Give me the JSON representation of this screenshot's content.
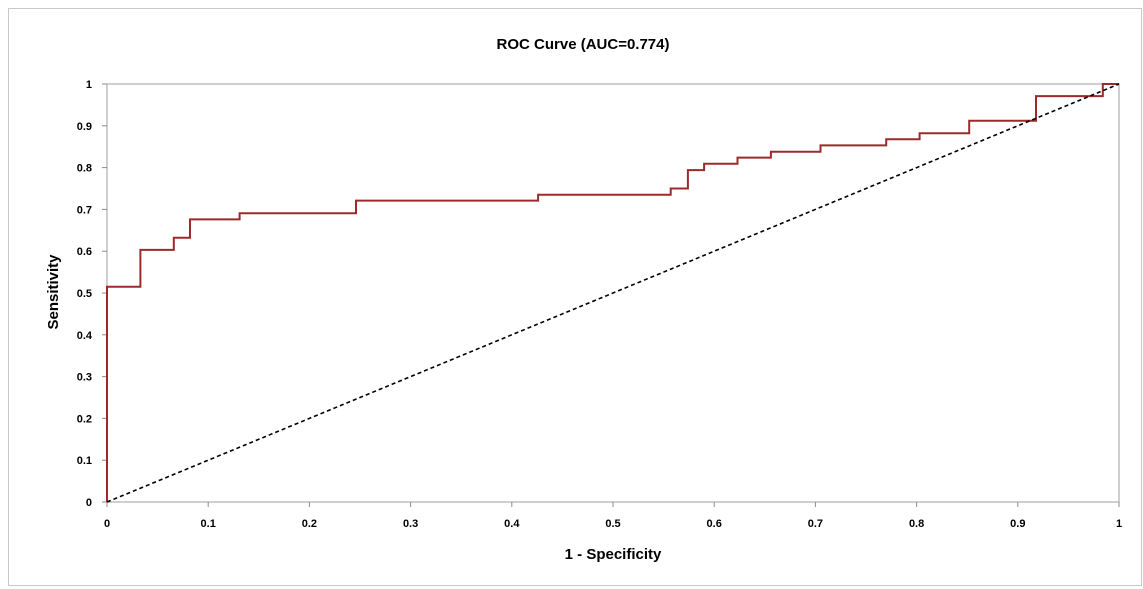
{
  "chart_data": {
    "type": "line",
    "title": "ROC Curve (AUC=0.774)",
    "xlabel": "1 - Specificity",
    "ylabel": "Sensitivity",
    "xlim": [
      0,
      1
    ],
    "ylim": [
      0,
      1
    ],
    "x_ticks": [
      "0",
      "0.1",
      "0.2",
      "0.3",
      "0.4",
      "0.5",
      "0.6",
      "0.7",
      "0.8",
      "0.9",
      "1"
    ],
    "y_ticks": [
      "0",
      "0.1",
      "0.2",
      "0.3",
      "0.4",
      "0.5",
      "0.6",
      "0.7",
      "0.8",
      "0.9",
      "1"
    ],
    "grid": false,
    "legend": "none",
    "series": [
      {
        "style": "step",
        "color": "#9b2b2b",
        "points": [
          [
            0,
            0
          ],
          [
            0,
            0.515
          ],
          [
            0.033,
            0.515
          ],
          [
            0.033,
            0.603
          ],
          [
            0.066,
            0.603
          ],
          [
            0.066,
            0.632
          ],
          [
            0.082,
            0.632
          ],
          [
            0.082,
            0.676
          ],
          [
            0.131,
            0.676
          ],
          [
            0.131,
            0.691
          ],
          [
            0.246,
            0.691
          ],
          [
            0.246,
            0.721
          ],
          [
            0.426,
            0.721
          ],
          [
            0.426,
            0.735
          ],
          [
            0.557,
            0.735
          ],
          [
            0.557,
            0.75
          ],
          [
            0.574,
            0.75
          ],
          [
            0.574,
            0.794
          ],
          [
            0.59,
            0.794
          ],
          [
            0.59,
            0.809
          ],
          [
            0.623,
            0.809
          ],
          [
            0.623,
            0.824
          ],
          [
            0.656,
            0.824
          ],
          [
            0.656,
            0.838
          ],
          [
            0.705,
            0.838
          ],
          [
            0.705,
            0.853
          ],
          [
            0.77,
            0.853
          ],
          [
            0.77,
            0.868
          ],
          [
            0.803,
            0.868
          ],
          [
            0.803,
            0.882
          ],
          [
            0.852,
            0.882
          ],
          [
            0.852,
            0.912
          ],
          [
            0.918,
            0.912
          ],
          [
            0.918,
            0.971
          ],
          [
            0.984,
            0.971
          ],
          [
            0.984,
            1.0
          ],
          [
            1.0,
            1.0
          ]
        ]
      },
      {
        "style": "dashed",
        "color": "#000000",
        "points": [
          [
            0,
            0
          ],
          [
            1,
            1
          ]
        ]
      }
    ]
  }
}
